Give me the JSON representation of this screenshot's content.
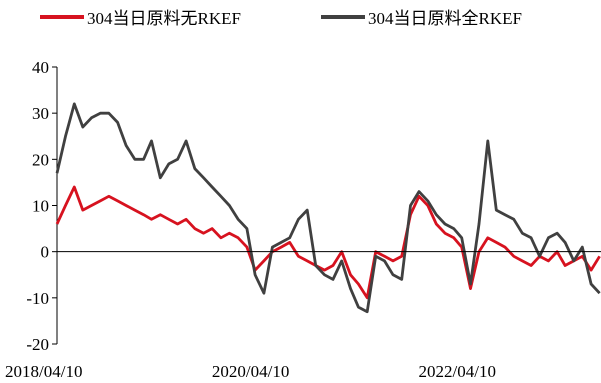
{
  "chart_data": {
    "type": "line",
    "title": "",
    "xlabel": "",
    "ylabel": "",
    "ylim": [
      -20,
      40
    ],
    "yticks": [
      -20,
      -10,
      0,
      10,
      20,
      30,
      40
    ],
    "x_tick_labels": [
      "2018/04/10",
      "2020/04/10",
      "2022/04/10"
    ],
    "x_tick_dates": [
      "2018-04-10",
      "2020-04-10",
      "2022-04-10"
    ],
    "x_range": [
      "2018-04-10",
      "2023-07-15"
    ],
    "legend_position": "top",
    "grid": false,
    "x": [
      "2018-04-10",
      "2018-05-10",
      "2018-06-10",
      "2018-07-10",
      "2018-08-10",
      "2018-09-10",
      "2018-10-10",
      "2018-11-10",
      "2018-12-10",
      "2019-01-10",
      "2019-02-10",
      "2019-03-10",
      "2019-04-10",
      "2019-05-10",
      "2019-06-10",
      "2019-07-10",
      "2019-08-10",
      "2019-09-10",
      "2019-10-10",
      "2019-11-10",
      "2019-12-10",
      "2020-01-10",
      "2020-02-10",
      "2020-03-10",
      "2020-04-10",
      "2020-05-10",
      "2020-06-10",
      "2020-07-10",
      "2020-08-10",
      "2020-09-10",
      "2020-10-10",
      "2020-11-10",
      "2020-12-10",
      "2021-01-10",
      "2021-02-10",
      "2021-03-10",
      "2021-04-10",
      "2021-05-10",
      "2021-06-10",
      "2021-07-10",
      "2021-08-10",
      "2021-09-10",
      "2021-10-10",
      "2021-11-10",
      "2021-12-10",
      "2022-01-10",
      "2022-02-10",
      "2022-03-10",
      "2022-04-10",
      "2022-05-10",
      "2022-06-10",
      "2022-07-10",
      "2022-08-10",
      "2022-09-10",
      "2022-10-10",
      "2022-11-10",
      "2022-12-10",
      "2023-01-10",
      "2023-02-10",
      "2023-03-10",
      "2023-04-10",
      "2023-05-10",
      "2023-06-10",
      "2023-07-10"
    ],
    "series": [
      {
        "name": "304当日原料无RKEF",
        "color": "#d7121f",
        "values": [
          6,
          10,
          14,
          9,
          10,
          11,
          12,
          11,
          10,
          9,
          8,
          7,
          8,
          7,
          6,
          7,
          5,
          4,
          5,
          3,
          4,
          3,
          1,
          -4,
          -2,
          0,
          1,
          2,
          -1,
          -2,
          -3,
          -4,
          -3,
          0,
          -5,
          -7,
          -10,
          0,
          -1,
          -2,
          -1,
          8,
          12,
          10,
          6,
          4,
          3,
          1,
          -8,
          0,
          3,
          2,
          1,
          -1,
          -2,
          -3,
          -1,
          -2,
          0,
          -3,
          -2,
          -1,
          -4,
          -1
        ]
      },
      {
        "name": "304当日原料全RKEF",
        "color": "#404040",
        "values": [
          17,
          25,
          32,
          27,
          29,
          30,
          30,
          28,
          23,
          20,
          20,
          24,
          16,
          19,
          20,
          24,
          18,
          16,
          14,
          12,
          10,
          7,
          5,
          -5,
          -9,
          1,
          2,
          3,
          7,
          9,
          -3,
          -5,
          -6,
          -2,
          -8,
          -12,
          -13,
          -1,
          -2,
          -5,
          -6,
          10,
          13,
          11,
          8,
          6,
          5,
          3,
          -7,
          6,
          24,
          9,
          8,
          7,
          4,
          3,
          -1,
          3,
          4,
          2,
          -2,
          1,
          -7,
          -9
        ]
      }
    ]
  }
}
